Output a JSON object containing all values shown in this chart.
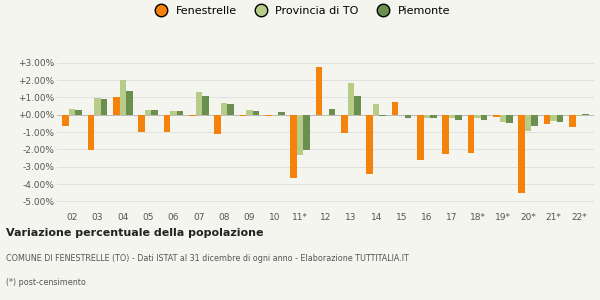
{
  "categories": [
    "02",
    "03",
    "04",
    "05",
    "06",
    "07",
    "08",
    "09",
    "10",
    "11*",
    "12",
    "13",
    "14",
    "15",
    "16",
    "17",
    "18*",
    "19*",
    "20*",
    "21*",
    "22*"
  ],
  "fenestrelle": [
    -0.65,
    -2.05,
    1.02,
    -1.0,
    -1.0,
    -0.1,
    -1.12,
    -0.1,
    -0.07,
    -3.65,
    2.75,
    -1.05,
    -3.42,
    0.72,
    -2.6,
    -2.25,
    -2.2,
    -0.13,
    -4.5,
    -0.55,
    -0.7
  ],
  "provincia_to": [
    0.32,
    0.95,
    2.02,
    0.27,
    0.22,
    1.28,
    0.65,
    0.28,
    -0.1,
    -2.35,
    -0.07,
    1.85,
    0.62,
    -0.03,
    -0.17,
    -0.22,
    -0.2,
    -0.4,
    -0.95,
    -0.38,
    -0.1
  ],
  "piemonte": [
    0.28,
    0.9,
    1.38,
    0.25,
    0.2,
    1.1,
    0.6,
    0.24,
    0.13,
    -2.05,
    0.3,
    1.08,
    -0.1,
    -0.18,
    -0.18,
    -0.28,
    -0.32,
    -0.5,
    -0.68,
    -0.42,
    0.02
  ],
  "fenestrelle_color": "#f5820a",
  "provincia_color": "#b8cc8a",
  "piemonte_color": "#6b8f4e",
  "title": "Variazione percentuale della popolazione",
  "subtitle": "COMUNE DI FENESTRELLE (TO) - Dati ISTAT al 31 dicembre di ogni anno - Elaborazione TUTTITALIA.IT",
  "footnote": "(*) post-censimento",
  "legend_labels": [
    "Fenestrelle",
    "Provincia di TO",
    "Piemonte"
  ],
  "ylim": [
    -5.5,
    3.5
  ],
  "yticks": [
    -5.0,
    -4.0,
    -3.0,
    -2.0,
    -1.0,
    0.0,
    1.0,
    2.0,
    3.0
  ],
  "background_color": "#f5f5f0",
  "grid_color": "#dddddd"
}
